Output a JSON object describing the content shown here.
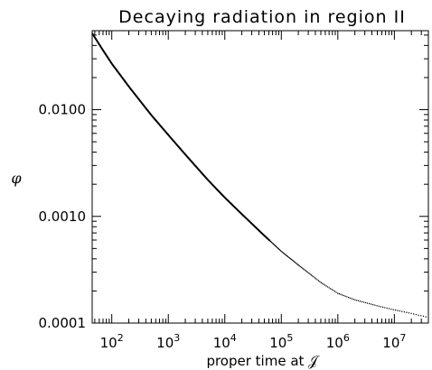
{
  "chart_data": {
    "type": "line",
    "title": "Decaying radiation in region II",
    "xlabel": "proper time at 𝒥",
    "ylabel": "φ",
    "xscale": "log",
    "yscale": "log",
    "xlim": [
      45,
      40000000
    ],
    "ylim": [
      0.0001,
      0.055
    ],
    "x_ticks": [
      {
        "value": 100,
        "base": "10",
        "exp": "2"
      },
      {
        "value": 1000,
        "base": "10",
        "exp": "3"
      },
      {
        "value": 10000,
        "base": "10",
        "exp": "4"
      },
      {
        "value": 100000,
        "base": "10",
        "exp": "5"
      },
      {
        "value": 1000000,
        "base": "10",
        "exp": "6"
      },
      {
        "value": 10000000,
        "base": "10",
        "exp": "7"
      }
    ],
    "y_ticks": [
      {
        "value": 0.01,
        "label": "0.0100"
      },
      {
        "value": 0.001,
        "label": "0.0010"
      },
      {
        "value": 0.0001,
        "label": "0.0001"
      }
    ],
    "grid": false,
    "series": [
      {
        "color": "#000000",
        "x": [
          45,
          70,
          100,
          200,
          500,
          1000,
          2000,
          5000,
          10000,
          20000,
          50000,
          100000,
          200000,
          500000,
          1000000,
          2000000,
          5000000,
          10000000,
          20000000,
          40000000
        ],
        "y": [
          0.052,
          0.036,
          0.027,
          0.0165,
          0.0089,
          0.0058,
          0.0038,
          0.0022,
          0.0015,
          0.00105,
          0.00066,
          0.00047,
          0.00035,
          0.00024,
          0.00019,
          0.000165,
          0.000145,
          0.000133,
          0.000123,
          0.000113
        ]
      }
    ]
  }
}
